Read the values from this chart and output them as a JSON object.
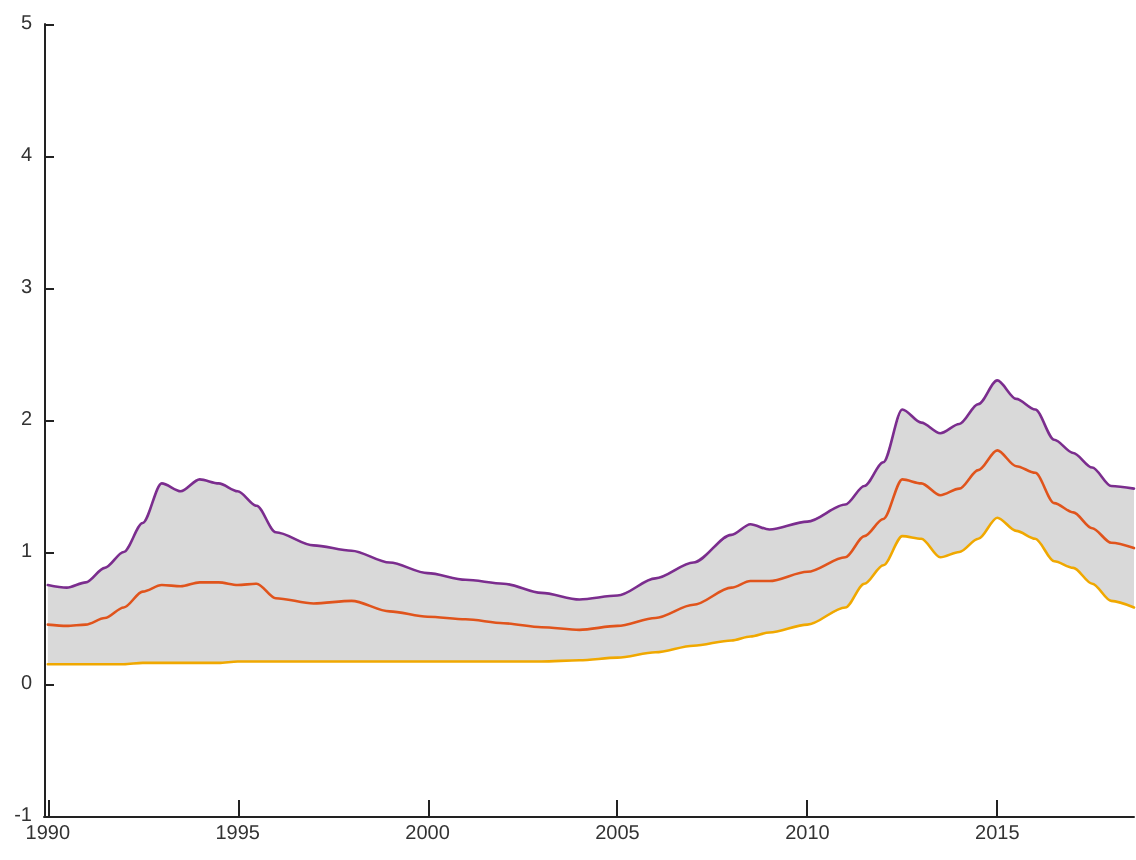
{
  "chart_data": {
    "type": "line",
    "x": [
      1990,
      1990.5,
      1991,
      1991.5,
      1992,
      1992.5,
      1993,
      1993.5,
      1994,
      1994.5,
      1995,
      1995.5,
      1996,
      1997,
      1998,
      1999,
      2000,
      2001,
      2002,
      2003,
      2004,
      2005,
      2006,
      2007,
      2008,
      2008.5,
      2009,
      2010,
      2011,
      2011.5,
      2012,
      2012.5,
      2013,
      2013.5,
      2014,
      2014.5,
      2015,
      2015.5,
      2016,
      2016.5,
      2017,
      2017.5,
      2018,
      2018.6
    ],
    "series": [
      {
        "color": "#7b2d8e",
        "values": [
          0.75,
          0.73,
          0.77,
          0.88,
          1.0,
          1.22,
          1.52,
          1.46,
          1.55,
          1.52,
          1.46,
          1.35,
          1.15,
          1.05,
          1.01,
          0.92,
          0.84,
          0.79,
          0.76,
          0.69,
          0.64,
          0.67,
          0.8,
          0.92,
          1.13,
          1.21,
          1.17,
          1.23,
          1.36,
          1.5,
          1.68,
          2.08,
          1.98,
          1.9,
          1.97,
          2.12,
          2.3,
          2.16,
          2.08,
          1.85,
          1.75,
          1.64,
          1.5,
          1.48
        ]
      },
      {
        "color": "#e0541c",
        "values": [
          0.45,
          0.44,
          0.45,
          0.5,
          0.58,
          0.7,
          0.75,
          0.74,
          0.77,
          0.77,
          0.75,
          0.76,
          0.65,
          0.61,
          0.63,
          0.55,
          0.51,
          0.49,
          0.46,
          0.43,
          0.41,
          0.44,
          0.5,
          0.6,
          0.73,
          0.78,
          0.78,
          0.85,
          0.96,
          1.12,
          1.25,
          1.55,
          1.52,
          1.43,
          1.48,
          1.62,
          1.77,
          1.65,
          1.6,
          1.37,
          1.3,
          1.18,
          1.07,
          1.03
        ],
        "lower": [
          0.15,
          0.15,
          0.15,
          0.15,
          0.15,
          0.16,
          0.16,
          0.16,
          0.16,
          0.16,
          0.17,
          0.17,
          0.17,
          0.17,
          0.17,
          0.17,
          0.17,
          0.17,
          0.17,
          0.17,
          0.18,
          0.2,
          0.24,
          0.29,
          0.33,
          0.36,
          0.39,
          0.45,
          0.58,
          0.76,
          0.9,
          1.12,
          1.1,
          0.96,
          1.0,
          1.1,
          1.26,
          1.16,
          1.1,
          0.93,
          0.88,
          0.76,
          0.63,
          0.58
        ],
        "upper": [
          0.75,
          0.73,
          0.77,
          0.88,
          1.0,
          1.22,
          1.52,
          1.46,
          1.55,
          1.52,
          1.46,
          1.35,
          1.15,
          1.05,
          1.01,
          0.92,
          0.84,
          0.79,
          0.76,
          0.69,
          0.64,
          0.67,
          0.8,
          0.92,
          1.13,
          1.21,
          1.17,
          1.23,
          1.36,
          1.5,
          1.68,
          2.08,
          1.98,
          1.9,
          1.97,
          2.12,
          2.3,
          2.16,
          2.08,
          1.85,
          1.75,
          1.64,
          1.5,
          1.48
        ]
      },
      {
        "color": "#f0a800",
        "values": [
          0.15,
          0.15,
          0.15,
          0.15,
          0.15,
          0.16,
          0.16,
          0.16,
          0.16,
          0.16,
          0.17,
          0.17,
          0.17,
          0.17,
          0.17,
          0.17,
          0.17,
          0.17,
          0.17,
          0.17,
          0.18,
          0.2,
          0.24,
          0.29,
          0.33,
          0.36,
          0.39,
          0.45,
          0.58,
          0.76,
          0.9,
          1.12,
          1.1,
          0.96,
          1.0,
          1.1,
          1.26,
          1.16,
          1.1,
          0.93,
          0.88,
          0.76,
          0.63,
          0.58
        ]
      }
    ],
    "xlim": [
      1989.9,
      2018.6
    ],
    "xticks": [
      1990,
      1995,
      2000,
      2005,
      2010,
      2015
    ],
    "ylim": [
      -1,
      5
    ],
    "yticks": [
      -1,
      0,
      1,
      2,
      3,
      4,
      5
    ],
    "grid": false,
    "marker": "none",
    "line_style": "solid"
  }
}
